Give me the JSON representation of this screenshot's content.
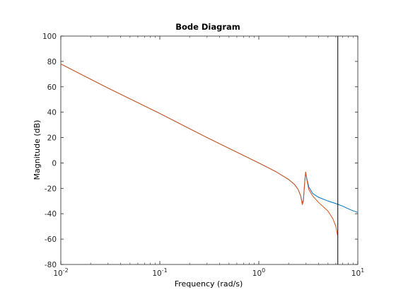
{
  "chart_data": {
    "type": "line",
    "title": "Bode Diagram",
    "xlabel": "Frequency  (rad/s)",
    "ylabel": "Magnitude (dB)",
    "xscale": "log",
    "xlim": [
      0.01,
      10
    ],
    "ylim": [
      -80,
      100
    ],
    "grid": false,
    "x_ticks": [
      {
        "value": 0.01,
        "base": "10",
        "exp": "-2"
      },
      {
        "value": 0.1,
        "base": "10",
        "exp": "-1"
      },
      {
        "value": 1,
        "base": "10",
        "exp": "0"
      },
      {
        "value": 10,
        "base": "10",
        "exp": "1"
      }
    ],
    "y_ticks": [
      "100",
      "80",
      "60",
      "40",
      "20",
      "0",
      "-20",
      "-40",
      "-60",
      "-80"
    ],
    "vertical_line": {
      "x": 6.28,
      "color": "#000000"
    },
    "series": [
      {
        "color": "#0072bd",
        "points": [
          [
            0.01,
            78
          ],
          [
            0.03,
            59
          ],
          [
            0.1,
            39
          ],
          [
            0.3,
            20
          ],
          [
            1,
            0
          ],
          [
            1.5,
            -7
          ],
          [
            2.0,
            -13
          ],
          [
            2.3,
            -17
          ],
          [
            2.5,
            -21
          ],
          [
            2.65,
            -26
          ],
          [
            2.75,
            -32
          ],
          [
            2.82,
            -29
          ],
          [
            2.9,
            -16
          ],
          [
            2.97,
            -7
          ],
          [
            3.05,
            -12
          ],
          [
            3.2,
            -19
          ],
          [
            3.5,
            -24
          ],
          [
            4.0,
            -27
          ],
          [
            5.0,
            -30
          ],
          [
            6.0,
            -32
          ],
          [
            7.0,
            -34
          ],
          [
            8.5,
            -37
          ],
          [
            10,
            -39
          ]
        ]
      },
      {
        "color": "#d95319",
        "points": [
          [
            0.01,
            78
          ],
          [
            0.03,
            59
          ],
          [
            0.1,
            39
          ],
          [
            0.3,
            20
          ],
          [
            1,
            0
          ],
          [
            1.5,
            -7
          ],
          [
            2.0,
            -13
          ],
          [
            2.3,
            -17
          ],
          [
            2.5,
            -21
          ],
          [
            2.65,
            -26
          ],
          [
            2.75,
            -33
          ],
          [
            2.82,
            -30
          ],
          [
            2.9,
            -17
          ],
          [
            2.97,
            -7
          ],
          [
            3.05,
            -13
          ],
          [
            3.2,
            -21
          ],
          [
            3.5,
            -26
          ],
          [
            4.0,
            -31
          ],
          [
            5.0,
            -38
          ],
          [
            5.6,
            -44
          ],
          [
            6.0,
            -50
          ],
          [
            6.25,
            -57
          ]
        ]
      }
    ]
  }
}
